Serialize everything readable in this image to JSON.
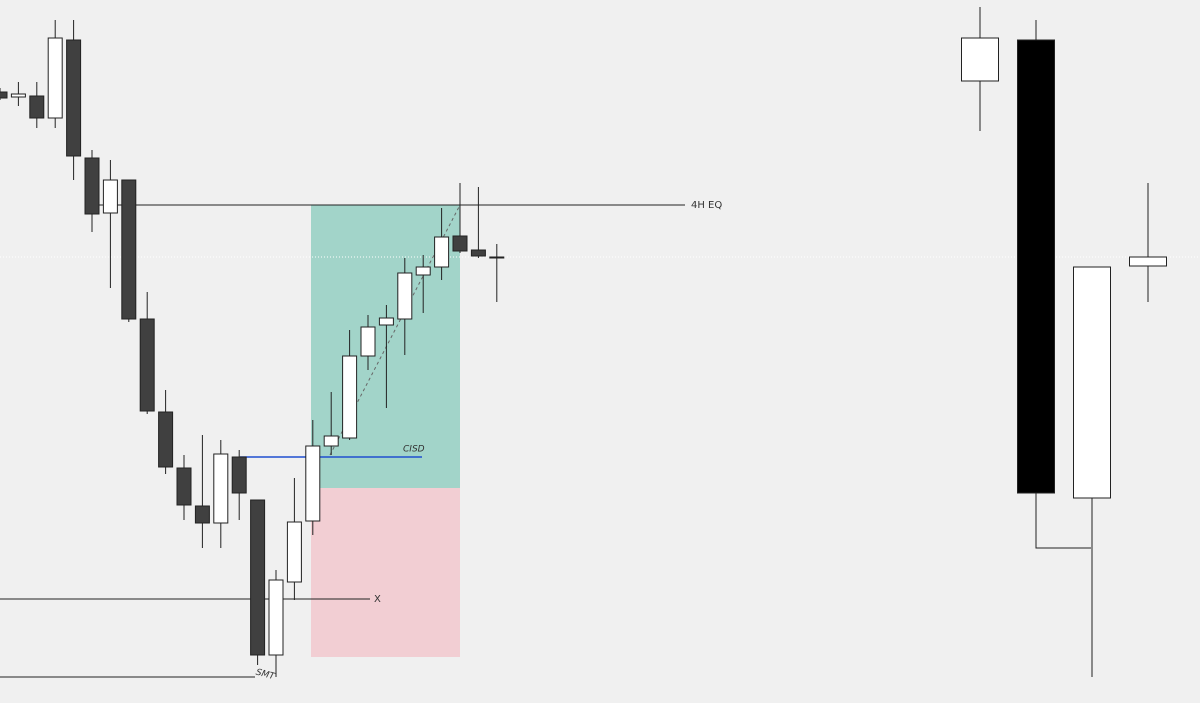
{
  "chart_data": [
    {
      "type": "candlestick",
      "up_color": "#ffffff",
      "down_color": "#404040",
      "ylim": [
        0,
        703
      ],
      "annotations": [
        "4H EQ",
        "CISD",
        "X",
        "SMT"
      ],
      "open": [
        611,
        606,
        607,
        585,
        663,
        545,
        490,
        523,
        384,
        291,
        235,
        197,
        180,
        246,
        203,
        48,
        121,
        182,
        257,
        265,
        347,
        378,
        384,
        428,
        436,
        467,
        453,
        446
      ],
      "high": [
        615,
        621,
        621,
        683,
        683,
        553,
        543,
        523,
        411,
        313,
        248,
        268,
        263,
        253,
        203,
        133,
        225,
        283,
        311,
        373,
        388,
        398,
        445,
        448,
        495,
        520,
        516,
        459
      ],
      "low": [
        603,
        597,
        575,
        575,
        523,
        471,
        415,
        381,
        289,
        229,
        183,
        155,
        155,
        183,
        38,
        26,
        103,
        168,
        248,
        263,
        333,
        295,
        348,
        390,
        423,
        450,
        445,
        401
      ],
      "close": [
        605,
        609,
        585,
        665,
        547,
        489,
        523,
        384,
        292,
        236,
        198,
        180,
        249,
        210,
        48,
        123,
        181,
        257,
        267,
        347,
        376,
        385,
        430,
        436,
        466,
        452,
        447,
        446
      ]
    },
    {
      "type": "candlestick",
      "up_color": "#ffffff",
      "down_color": "#000000",
      "ylim": [
        0,
        703
      ],
      "open": [
        622,
        663,
        205,
        437
      ],
      "high": [
        696,
        683,
        436,
        520
      ],
      "low": [
        572,
        155,
        26,
        401
      ],
      "close": [
        665,
        210,
        436,
        446
      ]
    }
  ]
}
